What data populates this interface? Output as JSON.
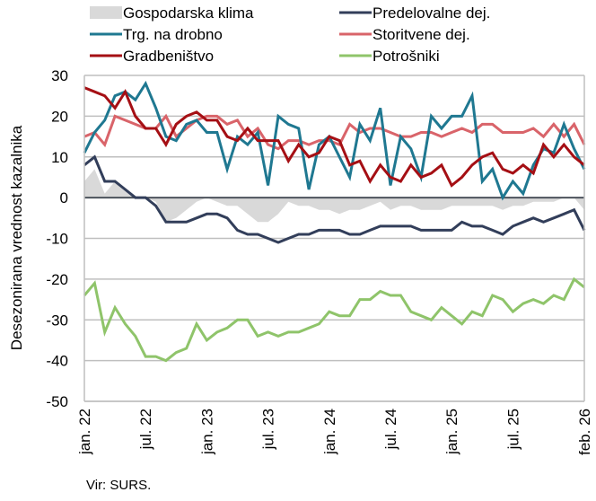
{
  "chart_data": {
    "type": "line",
    "title": "",
    "xlabel": "",
    "ylabel": "Desezonirana vrednost kazalnika",
    "ylim": [
      -50,
      30
    ],
    "yticks": [
      30,
      20,
      10,
      0,
      -10,
      -20,
      -30,
      -40,
      -50
    ],
    "ytick_labels": [
      "30",
      "20",
      "10",
      "0",
      "-10",
      "-20",
      "-30",
      "-40",
      "-50"
    ],
    "grid": true,
    "legend_position": "top",
    "x_start": "jan. 22",
    "x_end": "feb. 26",
    "x_count": 50,
    "xticks": [
      {
        "index": 0,
        "label": "jan. 22"
      },
      {
        "index": 6,
        "label": "jul. 22"
      },
      {
        "index": 12,
        "label": "jan. 23"
      },
      {
        "index": 18,
        "label": "jul. 23"
      },
      {
        "index": 24,
        "label": "jan. 24"
      },
      {
        "index": 30,
        "label": "jul. 24"
      },
      {
        "index": 36,
        "label": "jan. 25"
      },
      {
        "index": 42,
        "label": "jul. 25"
      },
      {
        "index": 49,
        "label": "feb. 26"
      }
    ],
    "series": [
      {
        "name": "Gospodarska klima",
        "kind": "area",
        "color": "#d9d9d9",
        "values": [
          4,
          7,
          1,
          4,
          2,
          0,
          0,
          -1,
          -6,
          -5,
          -3,
          -1,
          0,
          -1,
          -2,
          -2,
          -4,
          -6,
          -6,
          -4,
          -1,
          -2,
          -2,
          -3,
          -3,
          -4,
          -3,
          -3,
          -2,
          -1,
          -3,
          -2,
          -2,
          -3,
          -3,
          -3,
          -2,
          -2,
          -2,
          -2,
          -2,
          -3,
          -2,
          -2,
          -1,
          -1,
          -1,
          0,
          0,
          -3
        ]
      },
      {
        "name": "Predelovalne dej.",
        "kind": "line",
        "color": "#323e5a",
        "values": [
          8,
          10,
          4,
          4,
          2,
          0,
          0,
          -2,
          -6,
          -6,
          -6,
          -5,
          -4,
          -4,
          -5,
          -8,
          -9,
          -9,
          -10,
          -11,
          -10,
          -9,
          -9,
          -8,
          -8,
          -8,
          -9,
          -9,
          -8,
          -7,
          -7,
          -7,
          -7,
          -8,
          -8,
          -8,
          -8,
          -6,
          -7,
          -7,
          -8,
          -9,
          -7,
          -6,
          -5,
          -6,
          -5,
          -4,
          -3,
          -8
        ]
      },
      {
        "name": "Trg. na drobno",
        "kind": "line",
        "color": "#1f7891",
        "values": [
          11,
          16,
          19,
          25,
          26,
          24,
          28,
          22,
          15,
          14,
          18,
          19,
          16,
          16,
          7,
          15,
          13,
          16,
          3,
          20,
          18,
          17,
          2,
          13,
          15,
          10,
          5,
          18,
          14,
          22,
          3,
          15,
          12,
          5,
          20,
          17,
          20,
          20,
          25,
          4,
          7,
          0,
          4,
          1,
          8,
          12,
          11,
          18,
          12,
          7
        ]
      },
      {
        "name": "Storitvene dej.",
        "kind": "line",
        "color": "#d9646a",
        "values": [
          15,
          16,
          13,
          20,
          19,
          18,
          17,
          17,
          20,
          15,
          17,
          19,
          20,
          20,
          18,
          19,
          15,
          17,
          13,
          12,
          14,
          14,
          13,
          14,
          14,
          13,
          18,
          16,
          17,
          17,
          16,
          15,
          15,
          16,
          16,
          15,
          16,
          17,
          16,
          18,
          18,
          16,
          16,
          16,
          17,
          15,
          18,
          15,
          18,
          13
        ]
      },
      {
        "name": "Gradbeništvo",
        "kind": "line",
        "color": "#a50f14",
        "values": [
          27,
          26,
          25,
          22,
          26,
          20,
          17,
          17,
          13,
          18,
          20,
          21,
          19,
          19,
          15,
          14,
          17,
          14,
          14,
          14,
          9,
          13,
          10,
          11,
          15,
          14,
          8,
          9,
          4,
          8,
          5,
          4,
          8,
          5,
          6,
          8,
          3,
          5,
          8,
          10,
          11,
          7,
          6,
          8,
          6,
          13,
          10,
          13,
          10,
          8
        ]
      },
      {
        "name": "Potrošniki",
        "kind": "line",
        "color": "#8fc46a",
        "values": [
          -24,
          -21,
          -33,
          -27,
          -31,
          -34,
          -39,
          -39,
          -40,
          -38,
          -37,
          -31,
          -35,
          -33,
          -32,
          -30,
          -30,
          -34,
          -33,
          -34,
          -33,
          -33,
          -32,
          -31,
          -28,
          -29,
          -29,
          -25,
          -25,
          -23,
          -24,
          -24,
          -28,
          -29,
          -30,
          -27,
          -29,
          -31,
          -28,
          -29,
          -24,
          -25,
          -28,
          -26,
          -25,
          -26,
          -24,
          -25,
          -20,
          -22
        ]
      }
    ]
  },
  "footer": {
    "source": "Vir: SURS."
  }
}
